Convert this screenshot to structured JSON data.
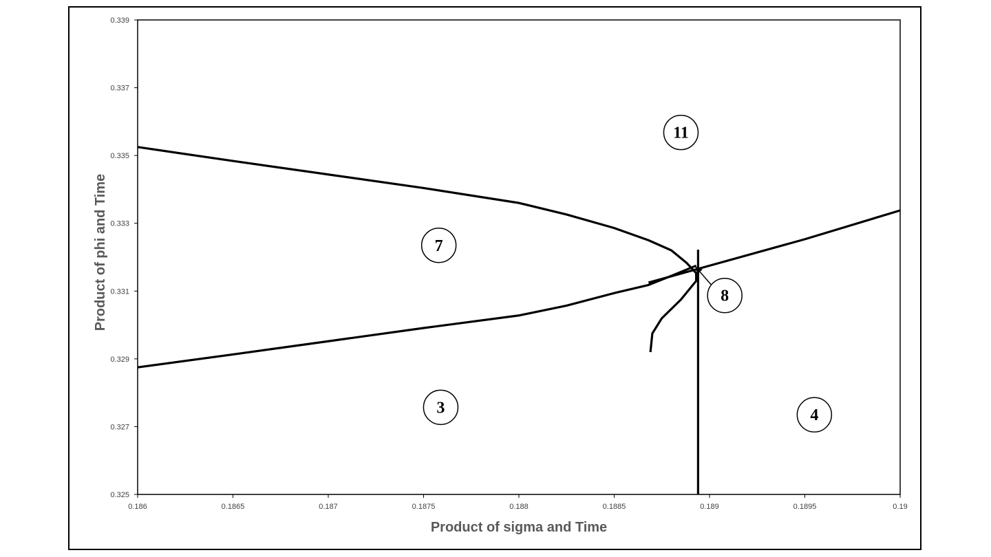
{
  "chart_data": {
    "type": "line",
    "title": "",
    "xlabel": "Product of sigma and Time",
    "ylabel": "Product of phi and Time",
    "xlim": [
      0.186,
      0.19
    ],
    "ylim": [
      0.325,
      0.339
    ],
    "x_ticks": [
      "0.186",
      "0.1865",
      "0.187",
      "0.1875",
      "0.188",
      "0.1885",
      "0.189",
      "0.1895",
      "0.19"
    ],
    "y_ticks": [
      "0.325",
      "0.327",
      "0.329",
      "0.331",
      "0.333",
      "0.335",
      "0.337",
      "0.339"
    ],
    "grid": false,
    "legend": "none",
    "line_color": "#000000",
    "series": [
      {
        "points": [
          [
            0.186,
            0.33525
          ],
          [
            0.1865,
            0.33484
          ],
          [
            0.187,
            0.33444
          ],
          [
            0.1875,
            0.33404
          ],
          [
            0.188,
            0.3336
          ],
          [
            0.18825,
            0.33326
          ],
          [
            0.1885,
            0.33286
          ],
          [
            0.18868,
            0.3325
          ],
          [
            0.1888,
            0.3322
          ],
          [
            0.18888,
            0.33183
          ],
          [
            0.18893,
            0.33153
          ],
          [
            0.18893,
            0.3313
          ],
          [
            0.18885,
            0.33075
          ],
          [
            0.18875,
            0.3302
          ],
          [
            0.1887,
            0.32975
          ],
          [
            0.18869,
            0.3292
          ]
        ]
      },
      {
        "points": [
          [
            0.186,
            0.32875
          ],
          [
            0.1865,
            0.32913
          ],
          [
            0.187,
            0.32952
          ],
          [
            0.1875,
            0.32991
          ],
          [
            0.188,
            0.33028
          ],
          [
            0.18825,
            0.33057
          ],
          [
            0.1885,
            0.33094
          ],
          [
            0.18868,
            0.33118
          ],
          [
            0.1888,
            0.33145
          ],
          [
            0.18893,
            0.33175
          ]
        ]
      },
      {
        "points": [
          [
            0.18868,
            0.33125
          ],
          [
            0.1895,
            0.33253
          ],
          [
            0.19,
            0.33338
          ]
        ]
      },
      {
        "points": [
          [
            0.18894,
            0.33222
          ],
          [
            0.18894,
            0.325
          ]
        ]
      }
    ],
    "annotations": [
      {
        "text": "11",
        "x": 0.18885,
        "y": 0.33568
      },
      {
        "text": "7",
        "x": 0.18758,
        "y": 0.33235
      },
      {
        "text": "8",
        "x": 0.18908,
        "y": 0.33087
      },
      {
        "text": "3",
        "x": 0.18759,
        "y": 0.32757
      },
      {
        "text": "4",
        "x": 0.18955,
        "y": 0.32735
      }
    ],
    "arrow": {
      "from_label": "8",
      "to": [
        0.18894,
        0.33164
      ]
    }
  }
}
